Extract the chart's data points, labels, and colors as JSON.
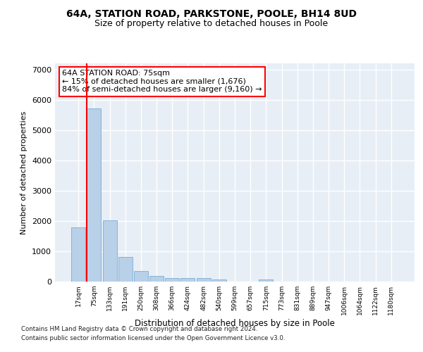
{
  "title_line1": "64A, STATION ROAD, PARKSTONE, POOLE, BH14 8UD",
  "title_line2": "Size of property relative to detached houses in Poole",
  "xlabel": "Distribution of detached houses by size in Poole",
  "ylabel": "Number of detached properties",
  "bar_color": "#b8d0e8",
  "bar_edge_color": "#7aadd4",
  "vline_color": "red",
  "annotation_title": "64A STATION ROAD: 75sqm",
  "annotation_line2": "← 15% of detached houses are smaller (1,676)",
  "annotation_line3": "84% of semi-detached houses are larger (9,160) →",
  "categories": [
    "17sqm",
    "75sqm",
    "133sqm",
    "191sqm",
    "250sqm",
    "308sqm",
    "366sqm",
    "424sqm",
    "482sqm",
    "540sqm",
    "599sqm",
    "657sqm",
    "715sqm",
    "773sqm",
    "831sqm",
    "889sqm",
    "947sqm",
    "1006sqm",
    "1064sqm",
    "1122sqm",
    "1180sqm"
  ],
  "values": [
    1800,
    5720,
    2020,
    810,
    340,
    175,
    110,
    110,
    110,
    75,
    0,
    0,
    75,
    0,
    0,
    0,
    0,
    0,
    0,
    0,
    0
  ],
  "ylim": [
    0,
    7200
  ],
  "yticks": [
    0,
    1000,
    2000,
    3000,
    4000,
    5000,
    6000,
    7000
  ],
  "footer1": "Contains HM Land Registry data © Crown copyright and database right 2024.",
  "footer2": "Contains public sector information licensed under the Open Government Licence v3.0.",
  "background_color": "#e8eef5",
  "grid_color": "#ffffff",
  "title1_fontsize": 10,
  "title2_fontsize": 9
}
